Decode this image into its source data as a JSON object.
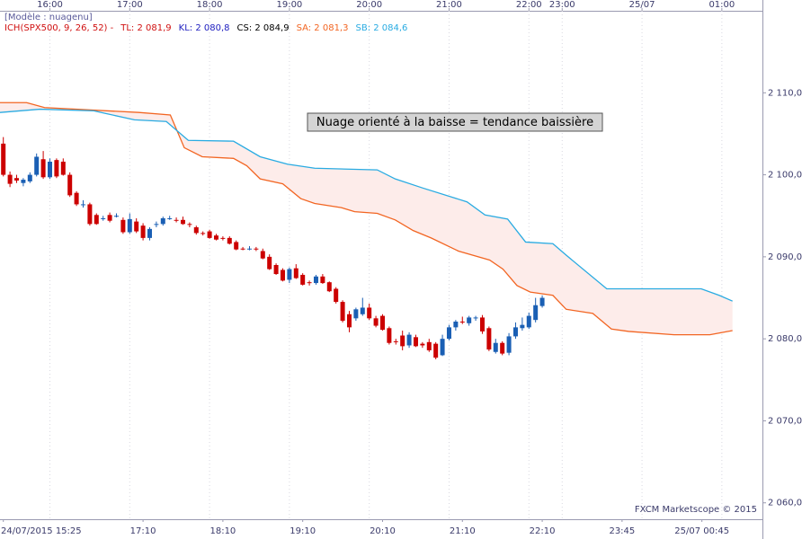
{
  "chart_data": {
    "type": "candlestick",
    "model_label": "[Modèle : nuagenu]",
    "indicator_label": {
      "text": "ICH(SPX500, 9, 26, 52) -",
      "color": "#d01010"
    },
    "legend": [
      {
        "text": "TL: 2 081,9",
        "color": "#d01010"
      },
      {
        "text": "KL: 2 080,8",
        "color": "#2020c0"
      },
      {
        "text": "CS: 2 084,9",
        "color": "#000000"
      },
      {
        "text": "SA: 2 081,3",
        "color": "#f26522"
      },
      {
        "text": "SB: 2 084,6",
        "color": "#29abe2"
      }
    ],
    "annotation": "Nuage orienté à la baisse  = tendance baissière",
    "watermark": "FXCM Marketscope © 2015",
    "up_color": "#1a5fb4",
    "down_color": "#cc0000",
    "cloud_color": "#fdecea",
    "xlim": [
      -0.5,
      114.1
    ],
    "ylim": [
      2058,
      2120
    ],
    "yticks": [
      {
        "value": 2060,
        "label": "2 060,0"
      },
      {
        "value": 2070,
        "label": "2 070,0"
      },
      {
        "value": 2080,
        "label": "2 080,0"
      },
      {
        "value": 2090,
        "label": "2 090,0"
      },
      {
        "value": 2100,
        "label": "2 100,0"
      },
      {
        "value": 2110,
        "label": "2 110,0"
      }
    ],
    "xticks_top": [
      {
        "value": 7,
        "label": "16:00"
      },
      {
        "value": 19,
        "label": "17:00"
      },
      {
        "value": 31,
        "label": "18:00"
      },
      {
        "value": 43,
        "label": "19:00"
      },
      {
        "value": 55,
        "label": "20:00"
      },
      {
        "value": 67,
        "label": "21:00"
      },
      {
        "value": 79,
        "label": "22:00"
      },
      {
        "value": 84,
        "label": "23:00"
      },
      {
        "value": 96,
        "label": "25/07"
      },
      {
        "value": 108,
        "label": "01:00"
      }
    ],
    "xticks_bottom": [
      {
        "value": 0,
        "label": "24/07/2015 15:25"
      },
      {
        "value": 21,
        "label": "17:10"
      },
      {
        "value": 33,
        "label": "18:10"
      },
      {
        "value": 45,
        "label": "19:10"
      },
      {
        "value": 57,
        "label": "20:10"
      },
      {
        "value": 69,
        "label": "21:10"
      },
      {
        "value": 81,
        "label": "22:10"
      },
      {
        "value": 93,
        "label": "23:45"
      },
      {
        "value": 105,
        "label": "25/07 00:45"
      }
    ],
    "candles": [
      [
        2103.8,
        2104.6,
        2099.8,
        2100.0
      ],
      [
        2100.0,
        2100.4,
        2098.5,
        2098.9
      ],
      [
        2099.6,
        2100.0,
        2099.0,
        2099.3
      ],
      [
        2099.0,
        2099.6,
        2098.6,
        2099.4
      ],
      [
        2099.2,
        2100.3,
        2099.0,
        2100.0
      ],
      [
        2100.0,
        2102.6,
        2099.8,
        2102.2
      ],
      [
        2101.9,
        2102.9,
        2099.5,
        2099.7
      ],
      [
        2099.7,
        2102.0,
        2099.5,
        2101.6
      ],
      [
        2101.8,
        2102.0,
        2099.6,
        2099.8
      ],
      [
        2101.6,
        2102.0,
        2099.9,
        2100.0
      ],
      [
        2100.0,
        2100.3,
        2097.3,
        2097.5
      ],
      [
        2097.8,
        2098.0,
        2096.2,
        2096.4
      ],
      [
        2096.3,
        2096.9,
        2096.0,
        2096.4
      ],
      [
        2096.4,
        2096.6,
        2093.8,
        2094.0
      ],
      [
        2095.1,
        2095.3,
        2093.9,
        2094.0
      ],
      [
        2094.7,
        2095.0,
        2094.4,
        2094.7
      ],
      [
        2095.1,
        2095.4,
        2094.2,
        2094.4
      ],
      [
        2095.0,
        2095.3,
        2094.8,
        2095.0
      ],
      [
        2094.5,
        2094.8,
        2092.8,
        2093.0
      ],
      [
        2093.0,
        2095.3,
        2092.8,
        2094.6
      ],
      [
        2094.3,
        2094.7,
        2092.9,
        2093.1
      ],
      [
        2093.8,
        2094.1,
        2092.0,
        2092.3
      ],
      [
        2092.3,
        2093.6,
        2092.0,
        2093.4
      ],
      [
        2094.0,
        2094.3,
        2093.6,
        2094.0
      ],
      [
        2094.0,
        2094.9,
        2093.8,
        2094.7
      ],
      [
        2094.7,
        2095.0,
        2094.5,
        2094.7
      ],
      [
        2094.5,
        2094.8,
        2094.2,
        2094.4
      ],
      [
        2094.5,
        2094.9,
        2093.9,
        2094.0
      ],
      [
        2094.0,
        2094.2,
        2093.6,
        2093.9
      ],
      [
        2093.6,
        2093.8,
        2092.7,
        2092.9
      ],
      [
        2092.9,
        2093.1,
        2092.6,
        2092.8
      ],
      [
        2093.1,
        2093.3,
        2092.2,
        2092.3
      ],
      [
        2092.6,
        2092.8,
        2092.0,
        2092.1
      ],
      [
        2092.3,
        2092.5,
        2092.0,
        2092.2
      ],
      [
        2092.3,
        2092.5,
        2091.5,
        2091.6
      ],
      [
        2091.8,
        2092.0,
        2090.8,
        2090.9
      ],
      [
        2091.0,
        2091.2,
        2090.8,
        2090.9
      ],
      [
        2091.0,
        2091.3,
        2090.8,
        2091.0
      ],
      [
        2091.0,
        2091.2,
        2090.7,
        2090.9
      ],
      [
        2090.7,
        2091.0,
        2089.7,
        2089.8
      ],
      [
        2090.0,
        2090.3,
        2088.4,
        2088.5
      ],
      [
        2089.0,
        2089.2,
        2087.8,
        2087.9
      ],
      [
        2088.4,
        2088.6,
        2087.0,
        2087.1
      ],
      [
        2087.2,
        2088.7,
        2086.8,
        2088.5
      ],
      [
        2088.6,
        2089.1,
        2087.3,
        2087.4
      ],
      [
        2087.8,
        2088.0,
        2086.5,
        2086.6
      ],
      [
        2086.9,
        2087.1,
        2086.5,
        2086.8
      ],
      [
        2086.8,
        2087.8,
        2086.6,
        2087.6
      ],
      [
        2087.6,
        2087.9,
        2086.7,
        2086.8
      ],
      [
        2086.9,
        2087.0,
        2085.7,
        2085.8
      ],
      [
        2086.1,
        2086.3,
        2084.3,
        2084.5
      ],
      [
        2084.5,
        2084.7,
        2082.0,
        2082.2
      ],
      [
        2083.0,
        2083.4,
        2080.8,
        2081.4
      ],
      [
        2082.5,
        2083.8,
        2082.2,
        2083.6
      ],
      [
        2083.0,
        2085.0,
        2082.8,
        2083.8
      ],
      [
        2083.8,
        2084.3,
        2082.3,
        2082.5
      ],
      [
        2082.5,
        2082.8,
        2081.4,
        2081.6
      ],
      [
        2082.8,
        2083.0,
        2081.0,
        2081.1
      ],
      [
        2081.3,
        2081.5,
        2079.3,
        2079.5
      ],
      [
        2079.7,
        2080.0,
        2079.3,
        2079.6
      ],
      [
        2080.4,
        2081.0,
        2078.6,
        2079.1
      ],
      [
        2079.2,
        2080.8,
        2078.9,
        2080.5
      ],
      [
        2080.2,
        2080.5,
        2079.0,
        2079.1
      ],
      [
        2079.4,
        2079.6,
        2078.9,
        2079.2
      ],
      [
        2079.6,
        2080.0,
        2078.4,
        2078.6
      ],
      [
        2079.4,
        2079.6,
        2077.5,
        2077.7
      ],
      [
        2078.0,
        2080.5,
        2077.9,
        2080.0
      ],
      [
        2080.0,
        2081.7,
        2079.8,
        2081.4
      ],
      [
        2081.4,
        2082.3,
        2081.0,
        2082.1
      ],
      [
        2082.1,
        2082.7,
        2081.8,
        2082.0
      ],
      [
        2081.9,
        2082.8,
        2081.6,
        2082.6
      ],
      [
        2082.5,
        2082.8,
        2082.2,
        2082.6
      ],
      [
        2082.6,
        2082.9,
        2080.6,
        2080.9
      ],
      [
        2081.3,
        2081.5,
        2078.5,
        2078.7
      ],
      [
        2078.4,
        2080.0,
        2078.2,
        2079.5
      ],
      [
        2079.5,
        2079.7,
        2078.0,
        2078.2
      ],
      [
        2078.3,
        2080.7,
        2078.0,
        2080.3
      ],
      [
        2080.3,
        2082.0,
        2080.0,
        2081.4
      ],
      [
        2081.3,
        2082.6,
        2081.0,
        2081.7
      ],
      [
        2081.4,
        2083.2,
        2081.2,
        2082.8
      ],
      [
        2082.3,
        2085.0,
        2082.0,
        2084.1
      ],
      [
        2084.0,
        2085.3,
        2083.8,
        2085.0
      ]
    ],
    "series": [
      {
        "color": "#f26522",
        "x": [
          -0.5,
          3.5,
          6.2,
          20.4,
          25.1,
          27.2,
          29.9,
          34.6,
          36.6,
          38.6,
          42,
          44.7,
          46.8,
          50.8,
          52.8,
          56.2,
          58.9,
          61.6,
          64.3,
          68.4,
          73.1,
          75.1,
          77.2,
          79.2,
          82.6,
          84.6,
          88.6,
          91.4,
          94,
          100.8,
          106.2,
          109.6
        ],
        "values": [
          2108.8,
          2108.8,
          2108.2,
          2107.6,
          2107.3,
          2103.3,
          2102.2,
          2102.0,
          2101.1,
          2099.5,
          2098.9,
          2097.1,
          2096.5,
          2096.0,
          2095.5,
          2095.3,
          2094.5,
          2093.2,
          2092.3,
          2090.7,
          2089.6,
          2088.5,
          2086.5,
          2085.7,
          2085.3,
          2083.6,
          2083.1,
          2081.2,
          2080.9,
          2080.5,
          2080.5,
          2081.0
        ]
      },
      {
        "color": "#29abe2",
        "x": [
          -0.5,
          5.5,
          13.6,
          19.7,
          24.5,
          27.8,
          34.6,
          38.6,
          42.7,
          46.8,
          56.2,
          58.9,
          63,
          69.7,
          72.4,
          75.8,
          78.5,
          82.6,
          84.6,
          90.7,
          104.9,
          107.6,
          109.6
        ],
        "values": [
          2107.6,
          2108.0,
          2107.8,
          2106.7,
          2106.5,
          2104.2,
          2104.1,
          2102.2,
          2101.3,
          2100.8,
          2100.6,
          2099.5,
          2098.4,
          2096.7,
          2095.1,
          2094.6,
          2091.8,
          2091.6,
          2090.2,
          2086.1,
          2086.1,
          2085.3,
          2084.6
        ]
      }
    ]
  }
}
